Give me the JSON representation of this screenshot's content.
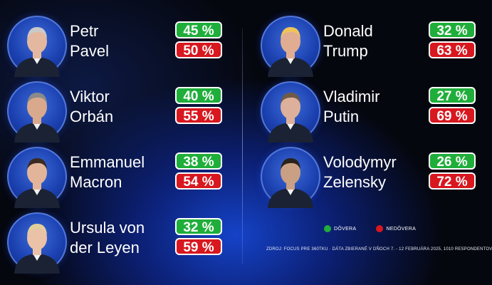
{
  "colors": {
    "trust": "#1fae3a",
    "distrust": "#d8171f",
    "background": "#05070f",
    "glow": "#1646d2"
  },
  "chart_data": {
    "type": "table",
    "series": [
      {
        "name": "Dôvera",
        "color": "#1fae3a"
      },
      {
        "name": "Nedôvera",
        "color": "#d8171f"
      }
    ],
    "rows": [
      {
        "first": "Petr",
        "last": "Pavel",
        "trust": 45,
        "distrust": 50,
        "trust_label": "45 %",
        "distrust_label": "50 %"
      },
      {
        "first": "Viktor",
        "last": "Orbán",
        "trust": 40,
        "distrust": 55,
        "trust_label": "40 %",
        "distrust_label": "55 %"
      },
      {
        "first": "Emmanuel",
        "last": "Macron",
        "trust": 38,
        "distrust": 54,
        "trust_label": "38 %",
        "distrust_label": "54 %"
      },
      {
        "first": "Ursula von",
        "last": "der Leyen",
        "trust": 32,
        "distrust": 59,
        "trust_label": "32 %",
        "distrust_label": "59 %"
      },
      {
        "first": "Donald",
        "last": "Trump",
        "trust": 32,
        "distrust": 63,
        "trust_label": "32 %",
        "distrust_label": "63 %"
      },
      {
        "first": "Vladimir",
        "last": "Putin",
        "trust": 27,
        "distrust": 69,
        "trust_label": "27 %",
        "distrust_label": "69 %"
      },
      {
        "first": "Volodymyr",
        "last": "Zelensky",
        "trust": 26,
        "distrust": 72,
        "trust_label": "26 %",
        "distrust_label": "72 %"
      }
    ],
    "legend": {
      "trust": "DÔVERA",
      "distrust": "NEDÔVERA"
    },
    "source": "ZDROJ: FOCUS PRE 360TKU · DÁTA ZBIERANÉ V DŇOCH 7. - 12 FEBRUÁRA 2025, 1010 RESPONDENTOV"
  }
}
